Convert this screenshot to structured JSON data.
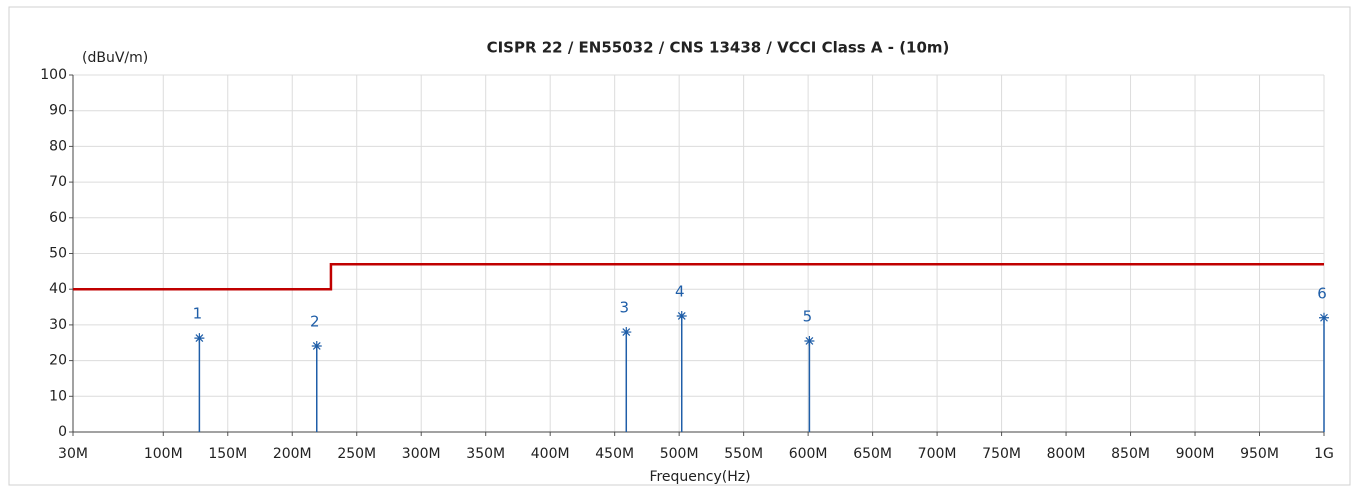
{
  "chart_data": {
    "type": "line",
    "title": "CISPR 22 / EN55032 / CNS 13438 / VCCI Class A - (10m)",
    "y_label": "(dBuV/m)",
    "x_label": "Frequency(Hz)",
    "xlim": [
      30000000,
      1000000000
    ],
    "ylim": [
      0,
      100
    ],
    "xticks": [
      {
        "value": 30000000,
        "label": "30M"
      },
      {
        "value": 100000000,
        "label": "100M"
      },
      {
        "value": 150000000,
        "label": "150M"
      },
      {
        "value": 200000000,
        "label": "200M"
      },
      {
        "value": 250000000,
        "label": "250M"
      },
      {
        "value": 300000000,
        "label": "300M"
      },
      {
        "value": 350000000,
        "label": "350M"
      },
      {
        "value": 400000000,
        "label": "400M"
      },
      {
        "value": 450000000,
        "label": "450M"
      },
      {
        "value": 500000000,
        "label": "500M"
      },
      {
        "value": 550000000,
        "label": "550M"
      },
      {
        "value": 600000000,
        "label": "600M"
      },
      {
        "value": 650000000,
        "label": "650M"
      },
      {
        "value": 700000000,
        "label": "700M"
      },
      {
        "value": 750000000,
        "label": "750M"
      },
      {
        "value": 800000000,
        "label": "800M"
      },
      {
        "value": 850000000,
        "label": "850M"
      },
      {
        "value": 900000000,
        "label": "900M"
      },
      {
        "value": 950000000,
        "label": "950M"
      },
      {
        "value": 1000000000,
        "label": "1G"
      }
    ],
    "yticks": [
      0,
      10,
      20,
      30,
      40,
      50,
      60,
      70,
      80,
      90,
      100
    ],
    "grid": true,
    "series": [
      {
        "color": "#c00000",
        "x": [
          30000000,
          230000000,
          230000000,
          1000000000
        ],
        "values": [
          40,
          40,
          47,
          47
        ]
      }
    ],
    "markers": {
      "color": "#1f5ea8",
      "x": [
        128000000,
        219000000,
        459000000,
        502000000,
        601000000,
        1000000000
      ],
      "values": [
        26.3,
        24.1,
        28,
        32.5,
        25.5,
        32
      ],
      "labels": [
        "1",
        "2",
        "3",
        "4",
        "5",
        "6"
      ]
    }
  }
}
